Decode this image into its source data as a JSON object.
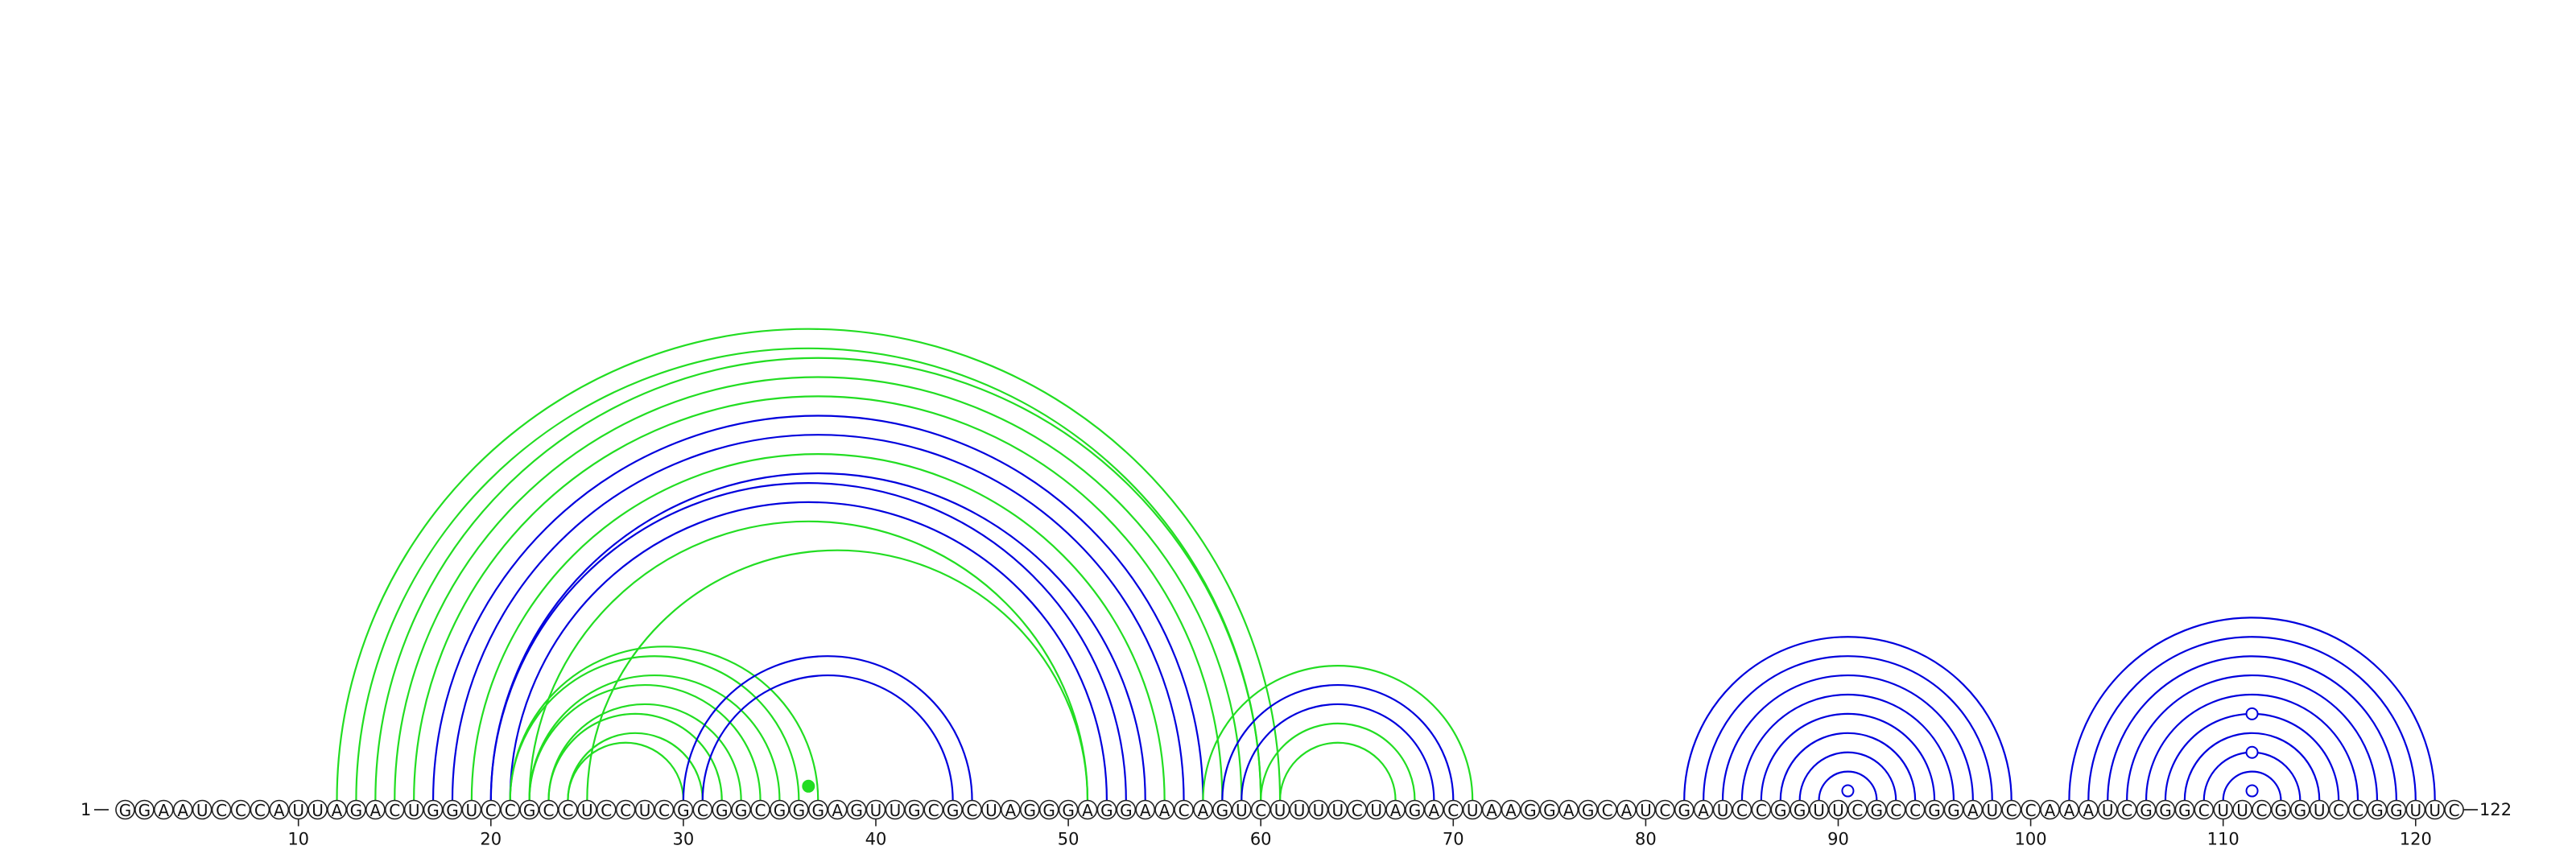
{
  "sequence": "GGAAUCCCAUUAGACUGGUCCGCCUCCUCGCGGCGGGAGUUGCGCUAGGGAGGAACAGUCUUUUCUAGACUAAGGAGCAUCGAUCCGGUUCGCCGGAUCCAAAUCGGGCUUCGGUCCGGUUC",
  "start_label": "1",
  "end_label": "122",
  "tick_labels": [
    "10",
    "20",
    "30",
    "40",
    "50",
    "60",
    "70",
    "80",
    "90",
    "100",
    "110",
    "120"
  ],
  "colors": {
    "green": "#22dd22",
    "blue": "#0000dd",
    "bead_stroke": "#222222"
  },
  "arcs": [
    {
      "i": 12,
      "j": 61,
      "c": "green"
    },
    {
      "i": 13,
      "j": 60,
      "c": "green"
    },
    {
      "i": 14,
      "j": 60,
      "c": "green"
    },
    {
      "i": 15,
      "j": 59,
      "c": "green"
    },
    {
      "i": 16,
      "j": 58,
      "c": "green"
    },
    {
      "i": 17,
      "j": 57,
      "c": "blue"
    },
    {
      "i": 18,
      "j": 56,
      "c": "blue"
    },
    {
      "i": 19,
      "j": 55,
      "c": "green"
    },
    {
      "i": 20,
      "j": 54,
      "c": "blue"
    },
    {
      "i": 20,
      "j": 53,
      "c": "blue"
    },
    {
      "i": 21,
      "j": 52,
      "c": "blue"
    },
    {
      "i": 22,
      "j": 51,
      "c": "green"
    },
    {
      "i": 25,
      "j": 51,
      "c": "green"
    },
    {
      "i": 21,
      "j": 37,
      "c": "green"
    },
    {
      "i": 21,
      "j": 36,
      "c": "green"
    },
    {
      "i": 22,
      "j": 35,
      "c": "green"
    },
    {
      "i": 22,
      "j": 34,
      "c": "green"
    },
    {
      "i": 23,
      "j": 33,
      "c": "green"
    },
    {
      "i": 23,
      "j": 32,
      "c": "green"
    },
    {
      "i": 24,
      "j": 31,
      "c": "green"
    },
    {
      "i": 24,
      "j": 30,
      "c": "green"
    },
    {
      "i": 30,
      "j": 45,
      "c": "blue"
    },
    {
      "i": 31,
      "j": 44,
      "c": "blue"
    },
    {
      "i": 57,
      "j": 71,
      "c": "green"
    },
    {
      "i": 58,
      "j": 70,
      "c": "blue"
    },
    {
      "i": 59,
      "j": 69,
      "c": "blue"
    },
    {
      "i": 60,
      "j": 68,
      "c": "green"
    },
    {
      "i": 61,
      "j": 67,
      "c": "green"
    },
    {
      "i": 82,
      "j": 99,
      "c": "blue"
    },
    {
      "i": 83,
      "j": 98,
      "c": "blue"
    },
    {
      "i": 84,
      "j": 97,
      "c": "blue"
    },
    {
      "i": 85,
      "j": 96,
      "c": "blue"
    },
    {
      "i": 86,
      "j": 95,
      "c": "blue"
    },
    {
      "i": 87,
      "j": 94,
      "c": "blue"
    },
    {
      "i": 88,
      "j": 93,
      "c": "blue"
    },
    {
      "i": 89,
      "j": 92,
      "c": "blue"
    },
    {
      "i": 102,
      "j": 121,
      "c": "blue"
    },
    {
      "i": 103,
      "j": 120,
      "c": "blue"
    },
    {
      "i": 104,
      "j": 119,
      "c": "blue"
    },
    {
      "i": 105,
      "j": 118,
      "c": "blue"
    },
    {
      "i": 106,
      "j": 117,
      "c": "blue"
    },
    {
      "i": 107,
      "j": 116,
      "c": "blue"
    },
    {
      "i": 108,
      "j": 115,
      "c": "blue"
    },
    {
      "i": 109,
      "j": 114,
      "c": "blue"
    },
    {
      "i": 110,
      "j": 113,
      "c": "blue"
    }
  ],
  "markers": [
    {
      "pos": 36.5,
      "h": 0.74,
      "c": "green",
      "filled": true
    },
    {
      "pos": 90.5,
      "h": 0.5,
      "c": "blue",
      "filled": false
    },
    {
      "pos": 111.5,
      "h": 0.5,
      "c": "blue",
      "filled": false
    },
    {
      "pos": 111.5,
      "h": 2.5,
      "c": "blue",
      "filled": false
    },
    {
      "pos": 111.5,
      "h": 4.5,
      "c": "blue",
      "filled": false
    }
  ]
}
